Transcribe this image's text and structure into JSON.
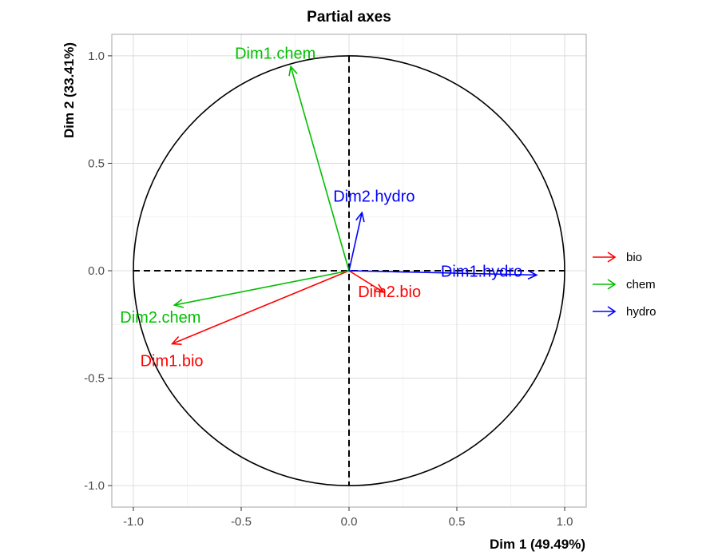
{
  "chart_data": {
    "type": "scatter",
    "title": "Partial axes",
    "xlabel": "Dim 1 (49.49%)",
    "ylabel": "Dim 2 (33.41%)",
    "xlim": [
      -1.1,
      1.1
    ],
    "ylim": [
      -1.1,
      1.1
    ],
    "xticks": [
      -1.0,
      -0.5,
      0.0,
      0.5,
      1.0
    ],
    "yticks": [
      -1.0,
      -0.5,
      0.0,
      0.5,
      1.0
    ],
    "xtick_labels": [
      "-1.0",
      "-0.5",
      "0.0",
      "0.5",
      "1.0"
    ],
    "ytick_labels": [
      "-1.0",
      "-0.5",
      "0.0",
      "0.5",
      "1.0"
    ],
    "grid": true,
    "unit_circle": true,
    "legend_position": "right",
    "series": [
      {
        "name": "bio",
        "color": "#ff0000",
        "arrows": [
          {
            "label": "Dim1.bio",
            "x": -0.82,
            "y": -0.34
          },
          {
            "label": "Dim2.bio",
            "x": 0.16,
            "y": -0.1
          }
        ]
      },
      {
        "name": "chem",
        "color": "#00bf00",
        "arrows": [
          {
            "label": "Dim1.chem",
            "x": -0.27,
            "y": 0.95
          },
          {
            "label": "Dim2.chem",
            "x": -0.81,
            "y": -0.16
          }
        ]
      },
      {
        "name": "hydro",
        "color": "#0000ff",
        "arrows": [
          {
            "label": "Dim1.hydro",
            "x": 0.87,
            "y": -0.02
          },
          {
            "label": "Dim2.hydro",
            "x": 0.06,
            "y": 0.27
          }
        ]
      }
    ]
  }
}
